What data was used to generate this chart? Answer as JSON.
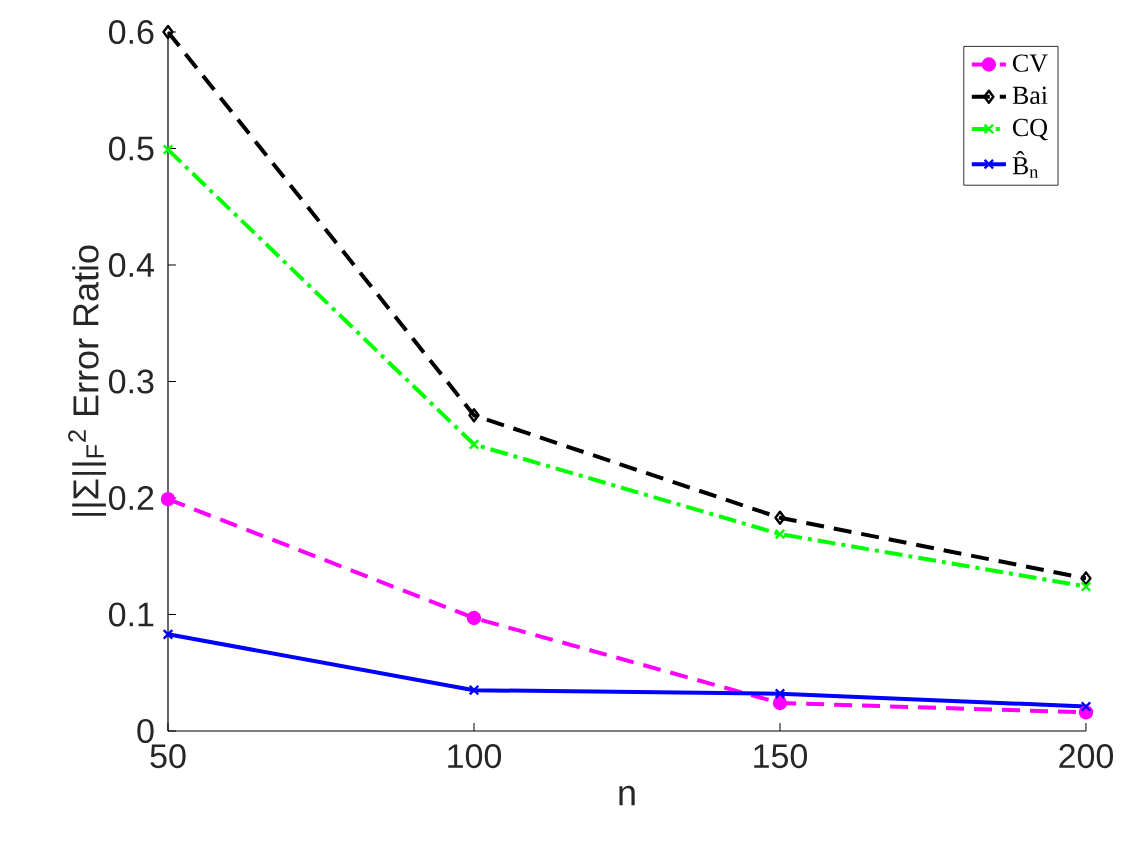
{
  "chart_data": {
    "type": "line",
    "xlabel": "n",
    "ylabel": "||Σ||$_{F}$$^{2}$  Error Ratio",
    "x": [
      50,
      100,
      150,
      200
    ],
    "series": [
      {
        "name": "CV",
        "color": "#ff00ff",
        "values": [
          0.199,
          0.097,
          0.024,
          0.016
        ],
        "marker": "circle",
        "line_style": "dashed"
      },
      {
        "name": "Bai",
        "color": "#000000",
        "values": [
          0.6,
          0.271,
          0.183,
          0.131
        ],
        "marker": "diamond",
        "line_style": "dashed"
      },
      {
        "name": "CQ",
        "color": "#00ff00",
        "values": [
          0.499,
          0.246,
          0.169,
          0.124
        ],
        "marker": "cross",
        "line_style": "dashdot"
      },
      {
        "name": "B̂$_{n}$",
        "color": "#0000ff",
        "values": [
          0.083,
          0.035,
          0.032,
          0.021
        ],
        "marker": "cross",
        "line_style": "solid"
      }
    ],
    "xlim": [
      50,
      200
    ],
    "ylim": [
      0,
      0.6
    ],
    "xticks": [
      50,
      100,
      150,
      200
    ],
    "yticks": [
      0,
      0.1,
      0.2,
      0.3,
      0.4,
      0.5,
      0.6
    ],
    "grid": false,
    "legend": "top right"
  }
}
